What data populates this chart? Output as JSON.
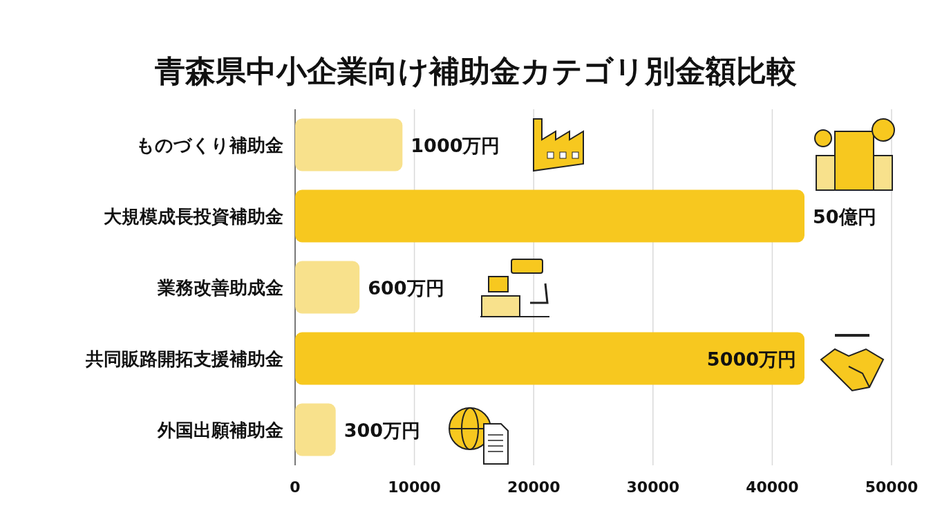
{
  "chart_data": {
    "type": "bar",
    "orientation": "horizontal",
    "title": "青森県中小企業向け補助金カテゴリ別金額比較",
    "categories": [
      "ものづくり補助金",
      "大規模成長投資補助金",
      "業務改善助成金",
      "共同販路開拓支援補助金",
      "外国出願補助金"
    ],
    "values": [
      9000,
      42700,
      5400,
      42700,
      3400
    ],
    "colors": [
      "#f8e18c",
      "#f7c81f",
      "#f8e18c",
      "#f7c81f",
      "#f8e18c"
    ],
    "annotations": [
      {
        "text": "1000万円",
        "x": 9000,
        "y": "ものづくり補助金"
      },
      {
        "text": "50億円",
        "x": 42700,
        "y": "大規模成長投資補助金"
      },
      {
        "text": "600万円",
        "x": 5400,
        "y": "業務改善助成金"
      },
      {
        "text": "5000万円",
        "x": 42700,
        "y": "共同販路開拓支援補助金"
      },
      {
        "text": "300万円",
        "x": 3400,
        "y": "外国出願補助金"
      }
    ],
    "xlim": [
      0,
      50000
    ],
    "xticks": [
      0,
      10000,
      20000,
      30000,
      40000,
      50000
    ],
    "grid": "x"
  }
}
